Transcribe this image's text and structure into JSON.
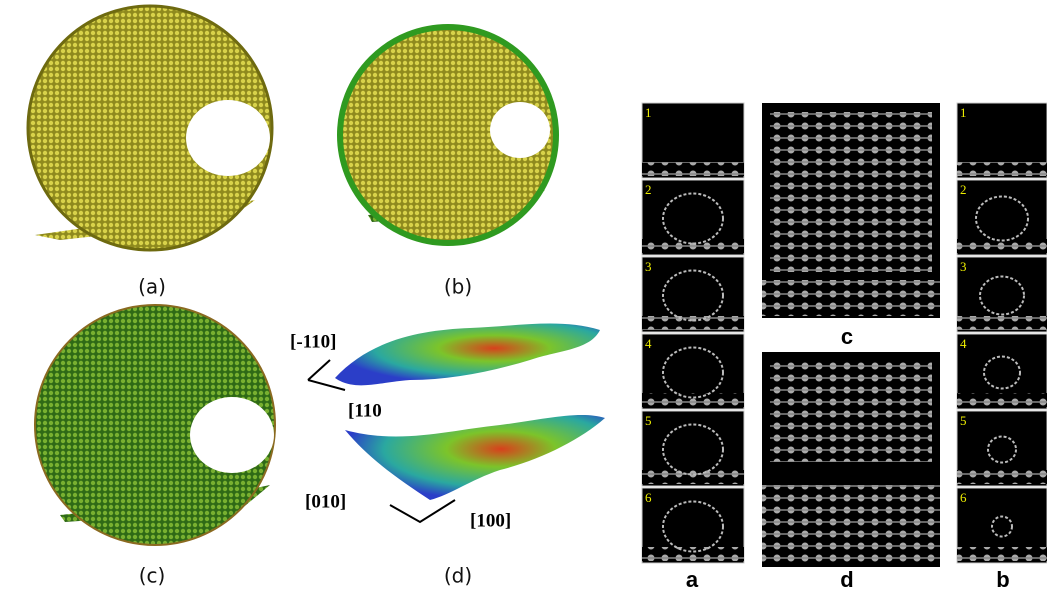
{
  "left_figure": {
    "panels": [
      {
        "label": "(a)"
      },
      {
        "label": "(b)"
      },
      {
        "label": "(c)"
      },
      {
        "label": "(d)"
      }
    ],
    "directions": [
      "[-110]",
      "[110",
      "[010]",
      "[100]"
    ]
  },
  "right_figure": {
    "column_a": {
      "label": "a",
      "frames": [
        "1",
        "2",
        "3",
        "4",
        "5",
        "6"
      ]
    },
    "column_b": {
      "label": "b",
      "frames": [
        "1",
        "2",
        "3",
        "4",
        "5",
        "6"
      ]
    },
    "panel_c": {
      "label": "c"
    },
    "panel_d": {
      "label": "d"
    }
  }
}
